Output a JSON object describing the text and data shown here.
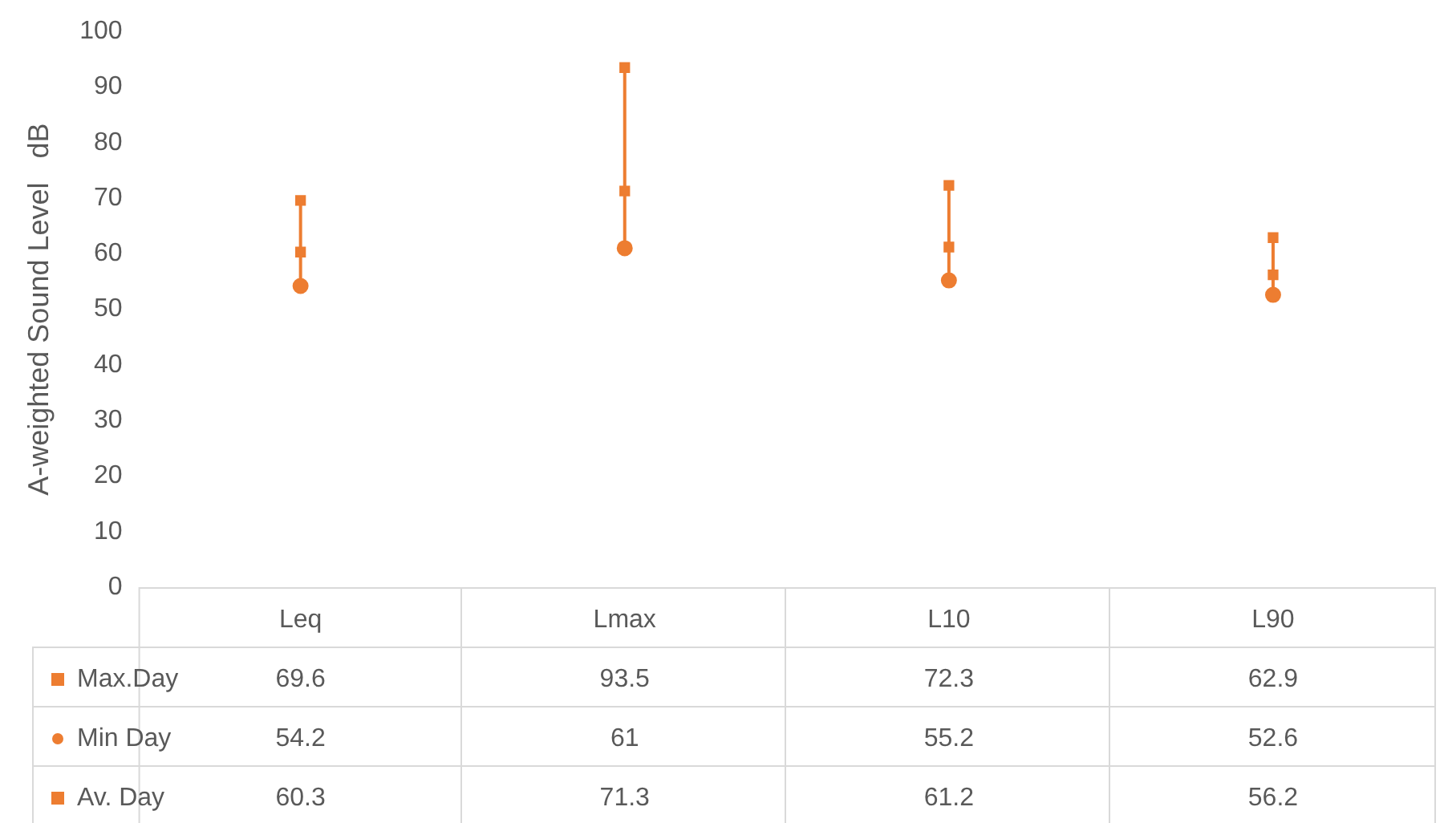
{
  "chart_data": {
    "type": "scatter",
    "ylabel": "A-weighted Sound Level   dB",
    "categories": [
      "Leq",
      "Lmax",
      "L10",
      "L90"
    ],
    "series": [
      {
        "name": "Max.Day",
        "color": "#ed7d31",
        "marker": "square",
        "values": [
          69.6,
          93.5,
          72.3,
          62.9
        ]
      },
      {
        "name": "Min Day",
        "color": "#ed7d31",
        "marker": "circle",
        "values": [
          54.2,
          61,
          55.2,
          52.6
        ]
      },
      {
        "name": "Av. Day",
        "color": "#ed7d31",
        "marker": "square",
        "values": [
          60.3,
          71.3,
          61.2,
          56.2
        ]
      }
    ],
    "ylim": [
      0,
      100
    ],
    "yticks": [
      0,
      10,
      20,
      30,
      40,
      50,
      60,
      70,
      80,
      90,
      100
    ],
    "grid": false,
    "legend": "bottom",
    "data_labels": true
  }
}
